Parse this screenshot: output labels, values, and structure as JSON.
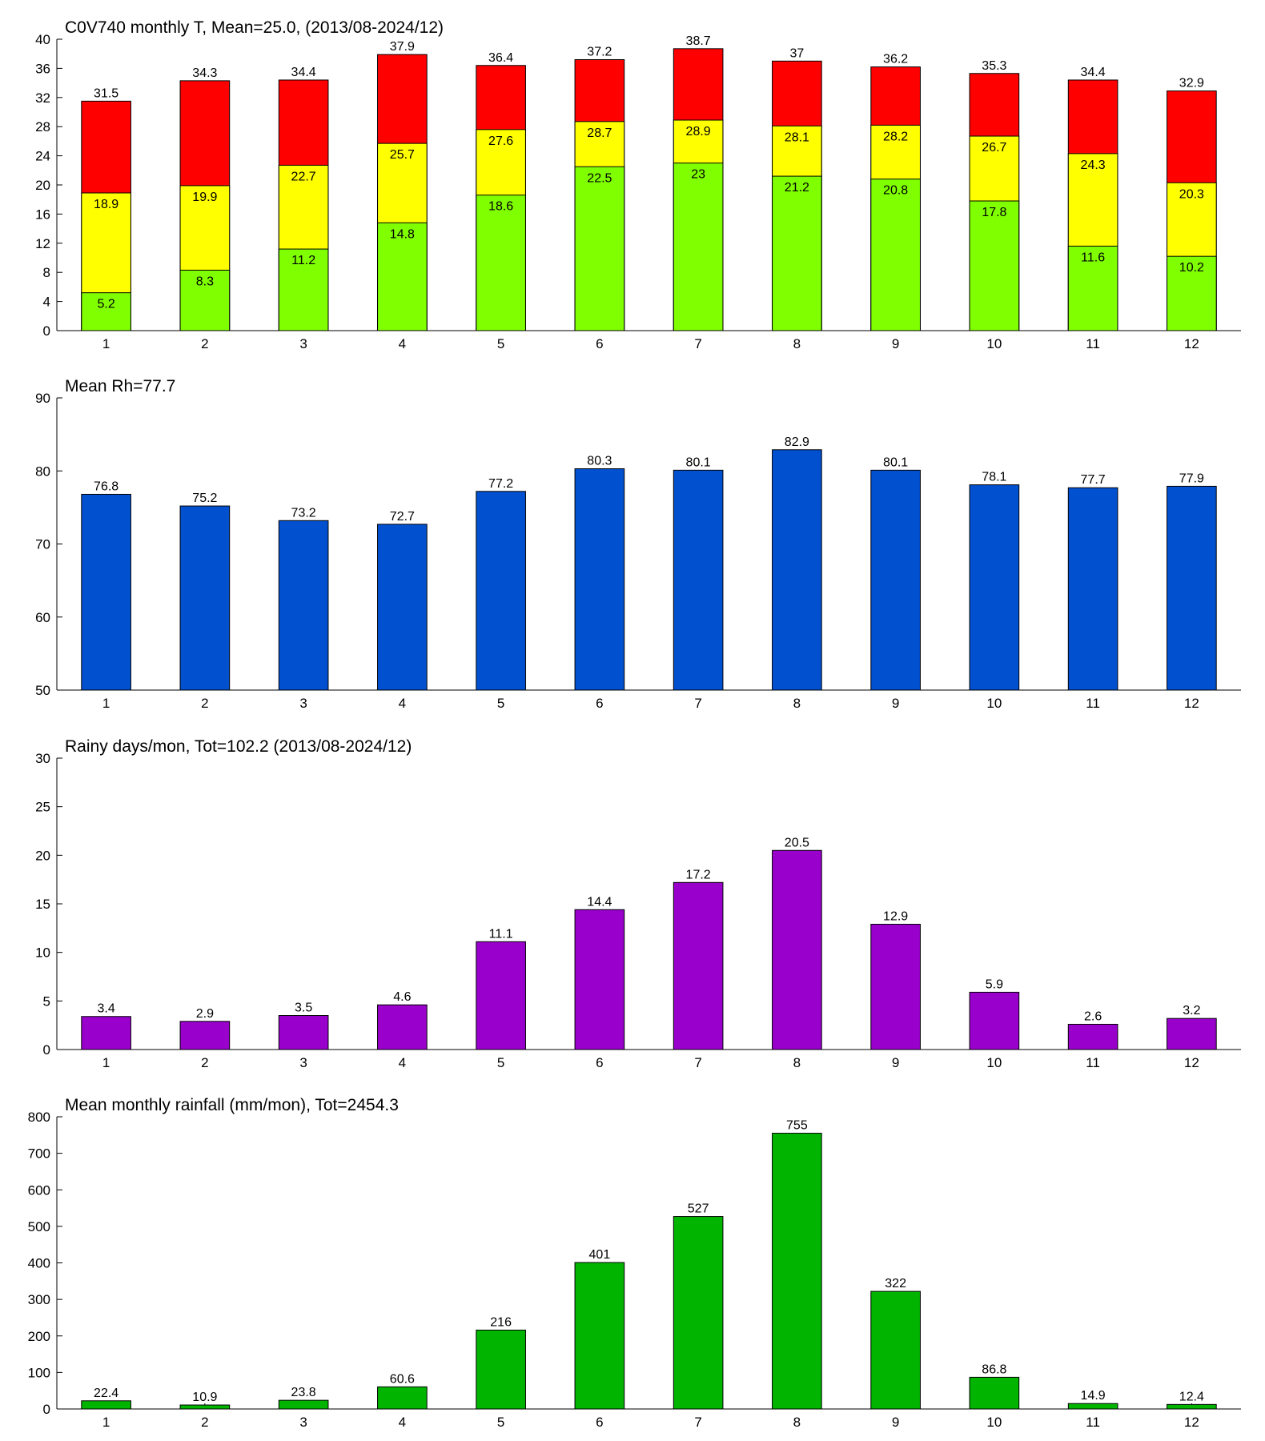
{
  "chart_data": [
    {
      "type": "bar",
      "title": "C0V740 monthly T, Mean=25.0, (2013/08-2024/12)",
      "categories": [
        "1",
        "2",
        "3",
        "4",
        "5",
        "6",
        "7",
        "8",
        "9",
        "10",
        "11",
        "12"
      ],
      "series": [
        {
          "color": "#80ff00",
          "values": [
            5.2,
            8.3,
            11.2,
            14.8,
            18.6,
            22.5,
            23,
            21.2,
            20.8,
            17.8,
            11.6,
            10.2
          ]
        },
        {
          "color": "#ffff00",
          "values": [
            18.9,
            19.9,
            22.7,
            25.7,
            27.6,
            28.7,
            28.9,
            28.1,
            28.2,
            26.7,
            24.3,
            20.3
          ]
        },
        {
          "color": "#ff0000",
          "values": [
            31.5,
            34.3,
            34.4,
            37.9,
            36.4,
            37.2,
            38.7,
            37,
            36.2,
            35.3,
            34.4,
            32.9
          ]
        }
      ],
      "ylim": [
        0,
        40
      ],
      "yticks": [
        0,
        4,
        8,
        12,
        16,
        20,
        24,
        28,
        32,
        36,
        40
      ]
    },
    {
      "type": "bar",
      "title": "Mean Rh=77.7",
      "categories": [
        "1",
        "2",
        "3",
        "4",
        "5",
        "6",
        "7",
        "8",
        "9",
        "10",
        "11",
        "12"
      ],
      "values": [
        76.8,
        75.2,
        73.2,
        72.7,
        77.2,
        80.3,
        80.1,
        82.9,
        80.1,
        78.1,
        77.7,
        77.9
      ],
      "color": "#0050d0",
      "ylim": [
        50,
        90
      ],
      "yticks": [
        50,
        60,
        70,
        80,
        90
      ]
    },
    {
      "type": "bar",
      "title": "Rainy days/mon, Tot=102.2 (2013/08-2024/12)",
      "categories": [
        "1",
        "2",
        "3",
        "4",
        "5",
        "6",
        "7",
        "8",
        "9",
        "10",
        "11",
        "12"
      ],
      "values": [
        3.4,
        2.9,
        3.5,
        4.6,
        11.1,
        14.4,
        17.2,
        20.5,
        12.9,
        5.9,
        2.6,
        3.2
      ],
      "color": "#9900cc",
      "ylim": [
        0,
        30
      ],
      "yticks": [
        0,
        5,
        10,
        15,
        20,
        25,
        30
      ]
    },
    {
      "type": "bar",
      "title": "Mean monthly rainfall (mm/mon), Tot=2454.3",
      "categories": [
        "1",
        "2",
        "3",
        "4",
        "5",
        "6",
        "7",
        "8",
        "9",
        "10",
        "11",
        "12"
      ],
      "values": [
        22.4,
        10.9,
        23.8,
        60.6,
        216,
        401,
        527,
        755,
        322,
        86.8,
        14.9,
        12.4
      ],
      "color": "#00b400",
      "ylim": [
        0,
        800
      ],
      "yticks": [
        0,
        100,
        200,
        300,
        400,
        500,
        600,
        700,
        800
      ]
    }
  ]
}
